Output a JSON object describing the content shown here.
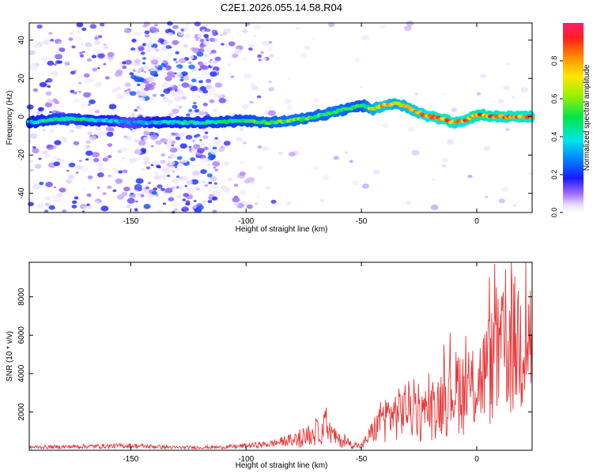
{
  "title": "C2E1.2026.055.14.58.R04",
  "chart_data": [
    {
      "type": "heatmap",
      "xlabel": "Height of straight line (km)",
      "ylabel": "Frequency (Hz)",
      "xlim": [
        -194,
        24
      ],
      "ylim": [
        -50,
        49
      ],
      "xticks": [
        -150,
        -100,
        -50,
        0
      ],
      "xtick_labels": [
        "-150",
        "-100",
        "-50",
        "0"
      ],
      "yticks": [
        -40,
        -20,
        0,
        20,
        40
      ],
      "ytick_labels": [
        "-40",
        "-20",
        "0",
        "20",
        "40"
      ],
      "colorbar": {
        "label": "Normalized spectral amplitude",
        "range": [
          0,
          1
        ],
        "ticks": [
          0.0,
          0.2,
          0.4,
          0.6,
          0.8
        ],
        "tick_labels": [
          "0.0",
          "0.2",
          "0.4",
          "0.6",
          "0.8"
        ]
      },
      "ridge_trace": {
        "description_free": true,
        "x": [
          -194,
          -180,
          -160,
          -150,
          -140,
          -120,
          -100,
          -90,
          -80,
          -70,
          -60,
          -50,
          -45,
          -40,
          -35,
          -30,
          -25,
          -20,
          -15,
          -10,
          -5,
          0,
          10,
          20,
          24
        ],
        "frequency": [
          -3,
          -1,
          -2,
          -3,
          -3,
          -3,
          -2,
          -3,
          -2,
          0,
          3,
          6,
          4,
          6,
          7,
          5,
          2,
          0,
          -1,
          -3,
          -2,
          1,
          0,
          0,
          0
        ],
        "amplitude": [
          0.4,
          0.5,
          0.4,
          0.3,
          0.4,
          0.45,
          0.5,
          0.55,
          0.6,
          0.55,
          0.6,
          0.5,
          0.7,
          0.8,
          0.7,
          0.75,
          0.8,
          0.85,
          0.9,
          0.9,
          0.85,
          0.95,
          0.9,
          0.9,
          0.85
        ]
      },
      "grid": false,
      "legend": "none"
    },
    {
      "type": "line",
      "xlabel": "Height of straight line (km)",
      "ylabel": "SNR (10 * v/v)",
      "xlim": [
        -194,
        24
      ],
      "ylim": [
        0,
        9800
      ],
      "xticks": [
        -150,
        -100,
        -50,
        0
      ],
      "xtick_labels": [
        "-150",
        "-100",
        "-50",
        "0"
      ],
      "yticks": [
        2000,
        4000,
        6000,
        8000
      ],
      "ytick_labels": [
        "2000",
        "4000",
        "6000",
        "8000"
      ],
      "line_color": "#e8383a",
      "envelope": {
        "x": [
          -194,
          -170,
          -150,
          -130,
          -110,
          -90,
          -80,
          -75,
          -70,
          -66,
          -60,
          -55,
          -50,
          -45,
          -40,
          -35,
          -30,
          -25,
          -20,
          -15,
          -10,
          -7,
          -5,
          0,
          5,
          10,
          15,
          20,
          24
        ],
        "values": [
          200,
          250,
          300,
          180,
          200,
          400,
          700,
          1000,
          1300,
          1800,
          800,
          500,
          300,
          1500,
          2600,
          2800,
          3400,
          2500,
          3000,
          4000,
          4600,
          5200,
          4300,
          5000,
          6500,
          7400,
          8200,
          8700,
          8600
        ]
      },
      "grid": false,
      "legend": "none"
    }
  ]
}
